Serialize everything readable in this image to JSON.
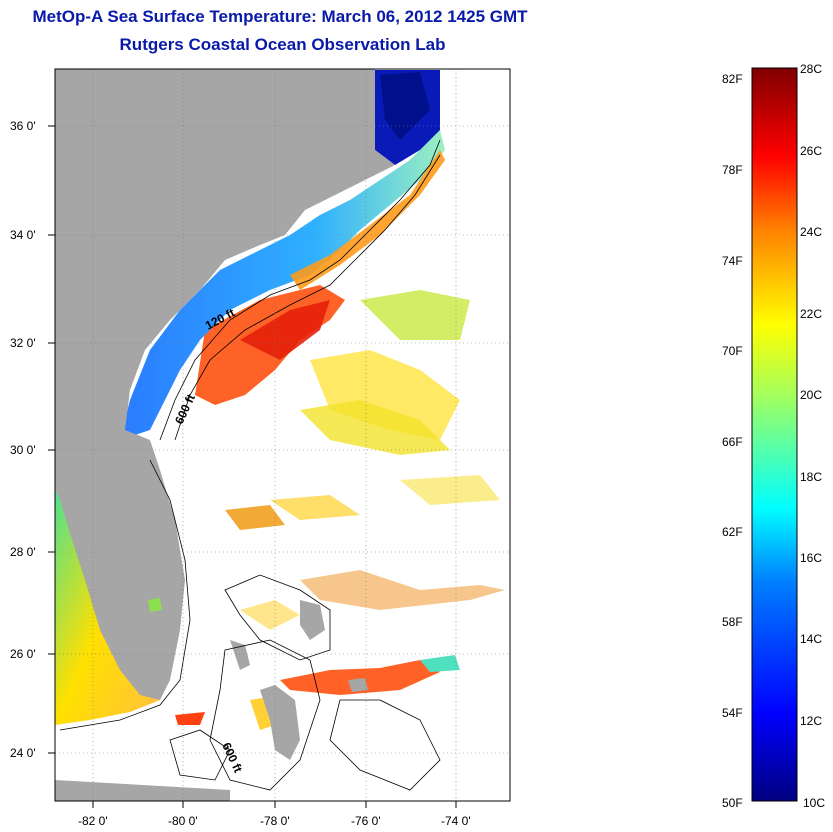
{
  "title": "MetOp-A Sea Surface Temperature:  March 06, 2012 1425 GMT",
  "subtitle": "Rutgers Coastal Ocean Observation Lab",
  "lat_ticks": [
    "36 0'",
    "34 0'",
    "32 0'",
    "30 0'",
    "28 0'",
    "26 0'",
    "24 0'"
  ],
  "lon_ticks": [
    "-82 0'",
    "-80 0'",
    "-78 0'",
    "-76 0'",
    "-74 0'"
  ],
  "contour_labels": [
    "120 ft",
    "600 ft",
    "600 ft"
  ],
  "colorbar": {
    "f_labels": [
      "82F",
      "78F",
      "74F",
      "70F",
      "66F",
      "62F",
      "58F",
      "54F",
      "50F"
    ],
    "c_labels": [
      "28C",
      "26C",
      "24C",
      "22C",
      "20C",
      "18C",
      "16C",
      "14C",
      "12C",
      "10C"
    ],
    "colors": [
      "#7f0000",
      "#ff0000",
      "#ff7f00",
      "#ffd700",
      "#c8f032",
      "#00ffff",
      "#0080ff",
      "#0000c0",
      "#00007f"
    ]
  },
  "colors": {
    "land": "#a6a6a6",
    "title": "#0a1aa8"
  }
}
